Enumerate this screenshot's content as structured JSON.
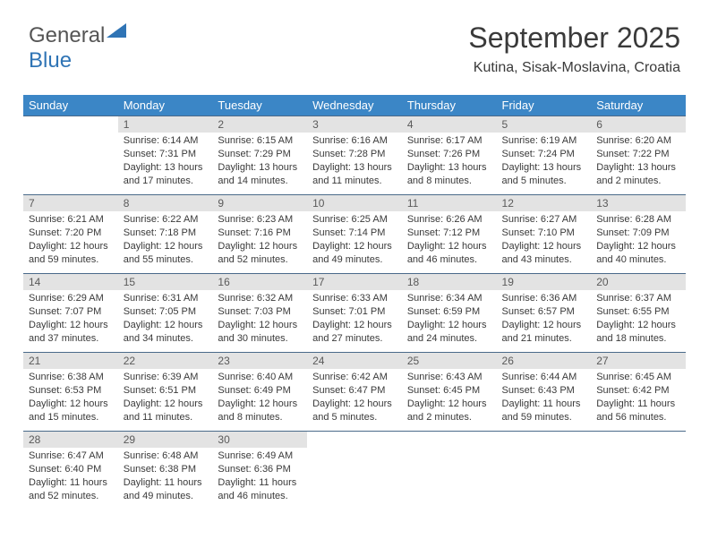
{
  "brand": {
    "part1": "General",
    "part2": "Blue"
  },
  "header": {
    "title": "September 2025",
    "location": "Kutina, Sisak-Moslavina, Croatia"
  },
  "colors": {
    "header_bg": "#3b86c6",
    "header_text": "#ffffff",
    "daynum_bg": "#e3e3e3",
    "cell_border": "#4a6a8a",
    "body_text": "#3a3a3a",
    "logo_accent": "#2f74b5"
  },
  "weekdays": [
    "Sunday",
    "Monday",
    "Tuesday",
    "Wednesday",
    "Thursday",
    "Friday",
    "Saturday"
  ],
  "first_weekday_index": 1,
  "days": [
    {
      "n": 1,
      "sunrise": "6:14 AM",
      "sunset": "7:31 PM",
      "daylight": "13 hours and 17 minutes."
    },
    {
      "n": 2,
      "sunrise": "6:15 AM",
      "sunset": "7:29 PM",
      "daylight": "13 hours and 14 minutes."
    },
    {
      "n": 3,
      "sunrise": "6:16 AM",
      "sunset": "7:28 PM",
      "daylight": "13 hours and 11 minutes."
    },
    {
      "n": 4,
      "sunrise": "6:17 AM",
      "sunset": "7:26 PM",
      "daylight": "13 hours and 8 minutes."
    },
    {
      "n": 5,
      "sunrise": "6:19 AM",
      "sunset": "7:24 PM",
      "daylight": "13 hours and 5 minutes."
    },
    {
      "n": 6,
      "sunrise": "6:20 AM",
      "sunset": "7:22 PM",
      "daylight": "13 hours and 2 minutes."
    },
    {
      "n": 7,
      "sunrise": "6:21 AM",
      "sunset": "7:20 PM",
      "daylight": "12 hours and 59 minutes."
    },
    {
      "n": 8,
      "sunrise": "6:22 AM",
      "sunset": "7:18 PM",
      "daylight": "12 hours and 55 minutes."
    },
    {
      "n": 9,
      "sunrise": "6:23 AM",
      "sunset": "7:16 PM",
      "daylight": "12 hours and 52 minutes."
    },
    {
      "n": 10,
      "sunrise": "6:25 AM",
      "sunset": "7:14 PM",
      "daylight": "12 hours and 49 minutes."
    },
    {
      "n": 11,
      "sunrise": "6:26 AM",
      "sunset": "7:12 PM",
      "daylight": "12 hours and 46 minutes."
    },
    {
      "n": 12,
      "sunrise": "6:27 AM",
      "sunset": "7:10 PM",
      "daylight": "12 hours and 43 minutes."
    },
    {
      "n": 13,
      "sunrise": "6:28 AM",
      "sunset": "7:09 PM",
      "daylight": "12 hours and 40 minutes."
    },
    {
      "n": 14,
      "sunrise": "6:29 AM",
      "sunset": "7:07 PM",
      "daylight": "12 hours and 37 minutes."
    },
    {
      "n": 15,
      "sunrise": "6:31 AM",
      "sunset": "7:05 PM",
      "daylight": "12 hours and 34 minutes."
    },
    {
      "n": 16,
      "sunrise": "6:32 AM",
      "sunset": "7:03 PM",
      "daylight": "12 hours and 30 minutes."
    },
    {
      "n": 17,
      "sunrise": "6:33 AM",
      "sunset": "7:01 PM",
      "daylight": "12 hours and 27 minutes."
    },
    {
      "n": 18,
      "sunrise": "6:34 AM",
      "sunset": "6:59 PM",
      "daylight": "12 hours and 24 minutes."
    },
    {
      "n": 19,
      "sunrise": "6:36 AM",
      "sunset": "6:57 PM",
      "daylight": "12 hours and 21 minutes."
    },
    {
      "n": 20,
      "sunrise": "6:37 AM",
      "sunset": "6:55 PM",
      "daylight": "12 hours and 18 minutes."
    },
    {
      "n": 21,
      "sunrise": "6:38 AM",
      "sunset": "6:53 PM",
      "daylight": "12 hours and 15 minutes."
    },
    {
      "n": 22,
      "sunrise": "6:39 AM",
      "sunset": "6:51 PM",
      "daylight": "12 hours and 11 minutes."
    },
    {
      "n": 23,
      "sunrise": "6:40 AM",
      "sunset": "6:49 PM",
      "daylight": "12 hours and 8 minutes."
    },
    {
      "n": 24,
      "sunrise": "6:42 AM",
      "sunset": "6:47 PM",
      "daylight": "12 hours and 5 minutes."
    },
    {
      "n": 25,
      "sunrise": "6:43 AM",
      "sunset": "6:45 PM",
      "daylight": "12 hours and 2 minutes."
    },
    {
      "n": 26,
      "sunrise": "6:44 AM",
      "sunset": "6:43 PM",
      "daylight": "11 hours and 59 minutes."
    },
    {
      "n": 27,
      "sunrise": "6:45 AM",
      "sunset": "6:42 PM",
      "daylight": "11 hours and 56 minutes."
    },
    {
      "n": 28,
      "sunrise": "6:47 AM",
      "sunset": "6:40 PM",
      "daylight": "11 hours and 52 minutes."
    },
    {
      "n": 29,
      "sunrise": "6:48 AM",
      "sunset": "6:38 PM",
      "daylight": "11 hours and 49 minutes."
    },
    {
      "n": 30,
      "sunrise": "6:49 AM",
      "sunset": "6:36 PM",
      "daylight": "11 hours and 46 minutes."
    }
  ],
  "labels": {
    "sunrise": "Sunrise:",
    "sunset": "Sunset:",
    "daylight": "Daylight:"
  }
}
